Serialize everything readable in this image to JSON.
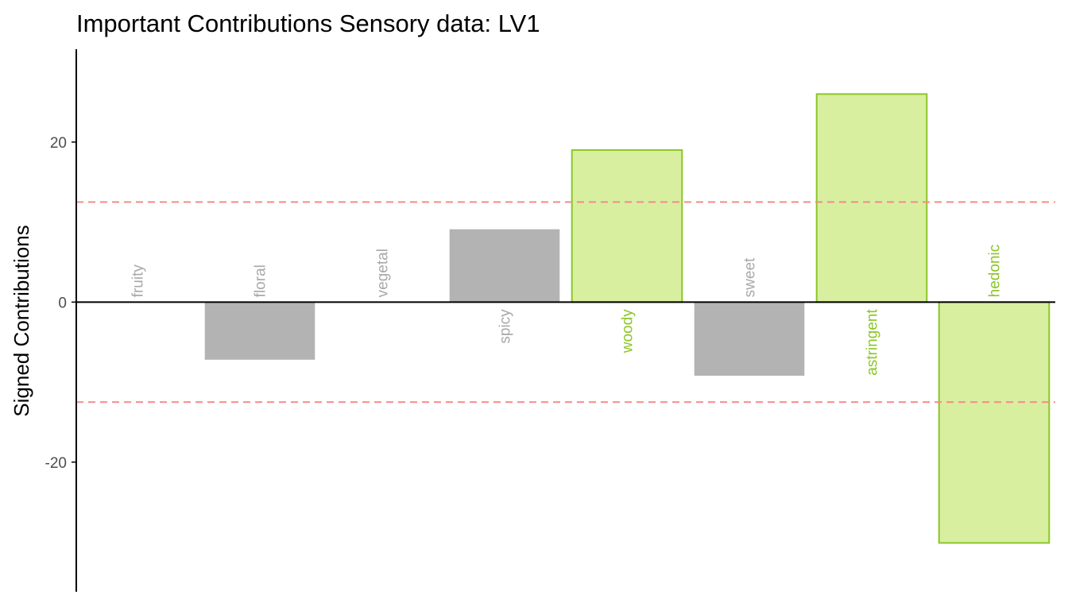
{
  "chart_data": {
    "type": "bar",
    "title": "Important Contributions Sensory data: LV1",
    "xlabel": "",
    "ylabel": "Signed Contributions",
    "categories": [
      "fruity",
      "floral",
      "vegetal",
      "spicy",
      "woody",
      "sweet",
      "astringent",
      "hedonic"
    ],
    "values": [
      0,
      -7.2,
      0,
      9.1,
      19.0,
      -9.2,
      26.0,
      -30.1
    ],
    "important": [
      false,
      false,
      false,
      false,
      true,
      false,
      true,
      true
    ],
    "ylim": [
      -36.2,
      31.6
    ],
    "yticks": [
      -20,
      0,
      20
    ],
    "ytick_labels": [
      "-20",
      "0",
      "20"
    ],
    "threshold_lines": [
      12.5,
      -12.5
    ],
    "grid": false,
    "legend": "none",
    "colors": {
      "important_fill": "#d8efa0",
      "important_stroke": "#8cc628",
      "important_label": "#8cc628",
      "other_fill": "#b3b3b3",
      "other_label": "#a9a9a9",
      "threshold_line": "#f58a8a",
      "axis": "#000000"
    }
  }
}
